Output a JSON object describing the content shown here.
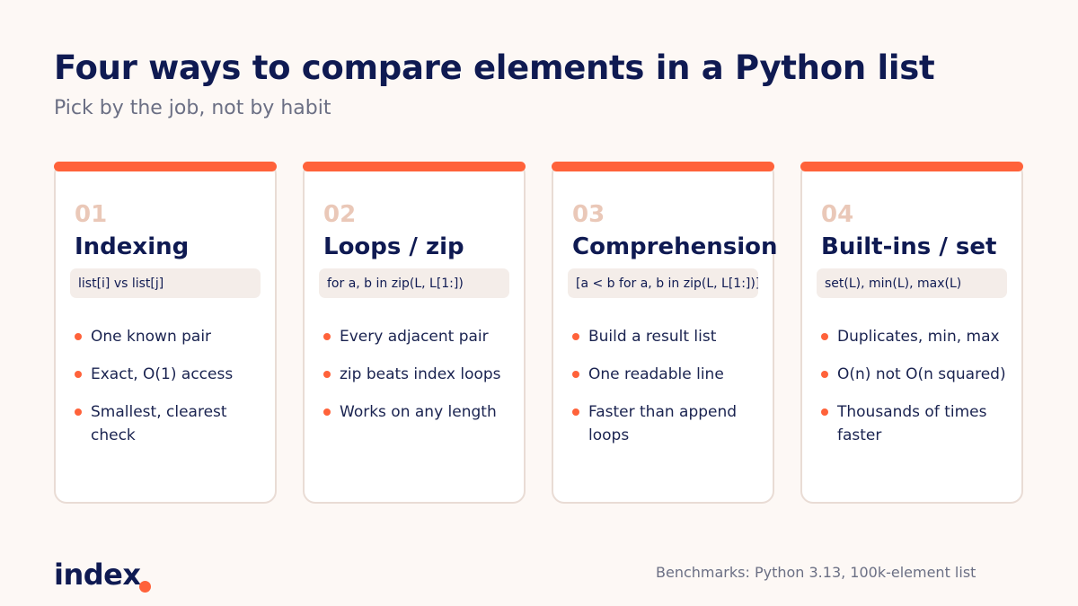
{
  "header": {
    "title": "Four ways to compare elements in a Python list",
    "subtitle": "Pick by the job, not by habit"
  },
  "cards": [
    {
      "number": "01",
      "name": "Indexing",
      "code": "list[i] vs list[j]",
      "bullets": [
        "One known pair",
        "Exact, O(1) access",
        "Smallest, clearest check"
      ]
    },
    {
      "number": "02",
      "name": "Loops / zip",
      "code": "for a, b in zip(L, L[1:])",
      "bullets": [
        "Every adjacent pair",
        "zip beats index loops",
        "Works on any length"
      ]
    },
    {
      "number": "03",
      "name": "Comprehension",
      "code": "[a < b for a, b in zip(L, L[1:])]",
      "bullets": [
        "Build a result list",
        "One readable line",
        "Faster than append loops"
      ]
    },
    {
      "number": "04",
      "name": "Built-ins / set",
      "code": "set(L), min(L), max(L)",
      "bullets": [
        "Duplicates, min, max",
        "O(n) not O(n squared)",
        "Thousands of times faster"
      ]
    }
  ],
  "footer": {
    "logo_text": "index",
    "note": "Benchmarks: Python 3.13, 100k-element list"
  },
  "colors": {
    "accent": "#ff623a",
    "navy": "#0f1a52",
    "background": "#fdf8f5",
    "number": "#eac8b8"
  }
}
